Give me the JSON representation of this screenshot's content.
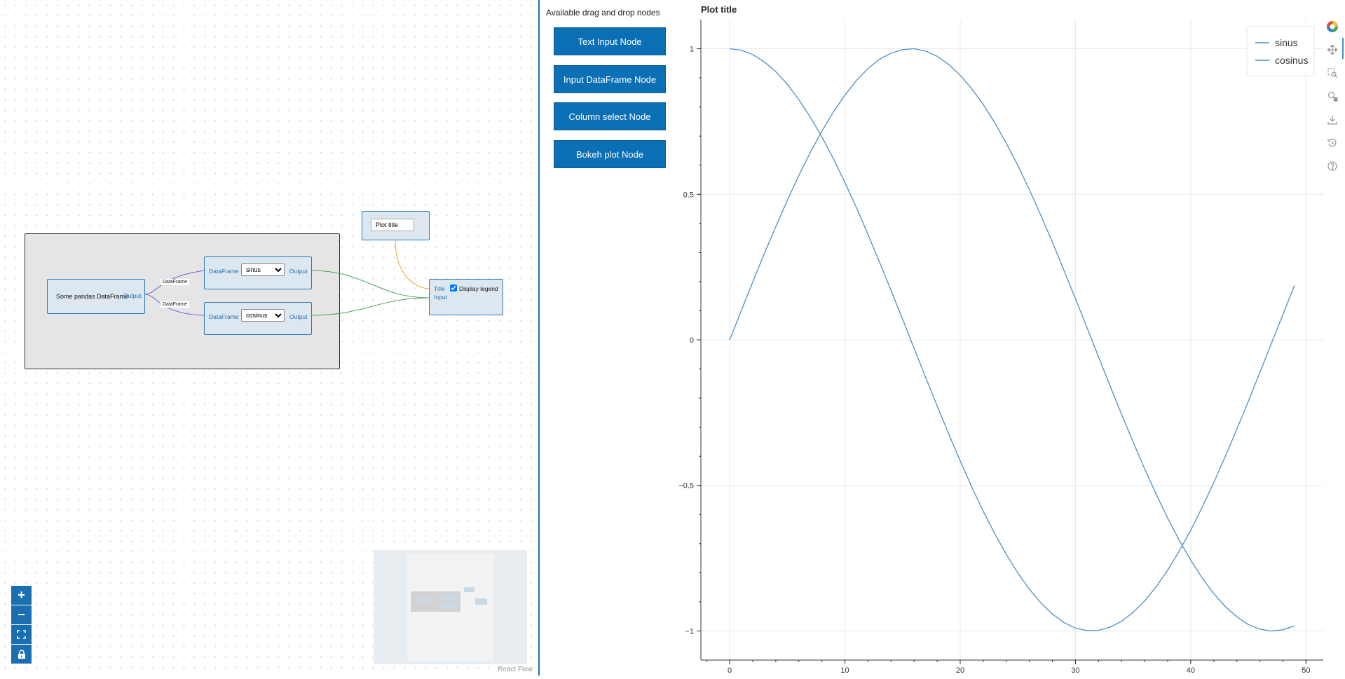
{
  "flow": {
    "group": {
      "source_node_label": "Some pandas DataFrame",
      "source_output": "Output",
      "edge_label_1": "DataFrame",
      "edge_label_2": "DataFrame",
      "select_node_1": {
        "input": "DataFrame",
        "value": "sinus",
        "output": "Output"
      },
      "select_node_2": {
        "input": "DataFrame",
        "value": "cosinus",
        "output": "Output"
      }
    },
    "title_node": {
      "value": "Plot title"
    },
    "plot_node": {
      "title_port": "Title",
      "input_port": "Input",
      "legend_label": "Display legend",
      "legend_checked": true
    },
    "attribution": "React Flow",
    "colors": {
      "accent": "#1a6fb0",
      "edge_green": "#4aa35a",
      "edge_purple": "#7b5cd6",
      "edge_orange": "#f0a030"
    }
  },
  "palette": {
    "heading": "Available drag and drop nodes",
    "buttons": [
      "Text Input Node",
      "Input DataFrame Node",
      "Column select Node",
      "Bokeh plot Node"
    ]
  },
  "plot": {
    "title": "Plot title",
    "toolbar": [
      "bokeh-logo",
      "pan",
      "box-zoom",
      "wheel-zoom",
      "save",
      "reset",
      "help"
    ]
  },
  "chart_data": {
    "type": "line",
    "title": "Plot title",
    "xlabel": "",
    "ylabel": "",
    "xlim": [
      -2.5,
      51.5
    ],
    "ylim": [
      -1.1,
      1.1
    ],
    "x_ticks": [
      0,
      10,
      20,
      30,
      40,
      50
    ],
    "y_ticks": [
      1,
      0.5,
      0,
      -0.5,
      -1
    ],
    "x_tick_labels": [
      "0",
      "10",
      "20",
      "30",
      "40",
      "50"
    ],
    "y_tick_labels": [
      "1",
      "0.5",
      "0",
      "−0.5",
      "−1"
    ],
    "grid": true,
    "legend_position": "top-right",
    "color": "#4d8fc7",
    "x": [
      0,
      1,
      2,
      3,
      4,
      5,
      6,
      7,
      8,
      9,
      10,
      11,
      12,
      13,
      14,
      15,
      16,
      17,
      18,
      19,
      20,
      21,
      22,
      23,
      24,
      25,
      26,
      27,
      28,
      29,
      30,
      31,
      32,
      33,
      34,
      35,
      36,
      37,
      38,
      39,
      40,
      41,
      42,
      43,
      44,
      45,
      46,
      47,
      48,
      49
    ],
    "series": [
      {
        "name": "sinus",
        "values": [
          0,
          0.1,
          0.199,
          0.296,
          0.389,
          0.479,
          0.565,
          0.644,
          0.717,
          0.783,
          0.841,
          0.891,
          0.932,
          0.964,
          0.985,
          0.997,
          1.0,
          0.992,
          0.974,
          0.946,
          0.909,
          0.863,
          0.808,
          0.746,
          0.675,
          0.599,
          0.516,
          0.427,
          0.335,
          0.239,
          0.141,
          0.042,
          -0.058,
          -0.158,
          -0.256,
          -0.351,
          -0.443,
          -0.53,
          -0.612,
          -0.688,
          -0.757,
          -0.818,
          -0.872,
          -0.916,
          -0.951,
          -0.978,
          -0.994,
          -1.0,
          -0.996,
          -0.982
        ]
      },
      {
        "name": "cosinus",
        "values": [
          1.0,
          0.995,
          0.98,
          0.955,
          0.921,
          0.878,
          0.825,
          0.765,
          0.697,
          0.622,
          0.54,
          0.454,
          0.362,
          0.267,
          0.17,
          0.071,
          -0.029,
          -0.129,
          -0.227,
          -0.323,
          -0.416,
          -0.505,
          -0.589,
          -0.666,
          -0.737,
          -0.801,
          -0.857,
          -0.904,
          -0.942,
          -0.971,
          -0.99,
          -0.999,
          -0.998,
          -0.987,
          -0.967,
          -0.936,
          -0.897,
          -0.848,
          -0.791,
          -0.726,
          -0.654,
          -0.575,
          -0.49,
          -0.4,
          -0.307,
          -0.211,
          -0.112,
          -0.012,
          0.087,
          0.187
        ]
      }
    ]
  }
}
